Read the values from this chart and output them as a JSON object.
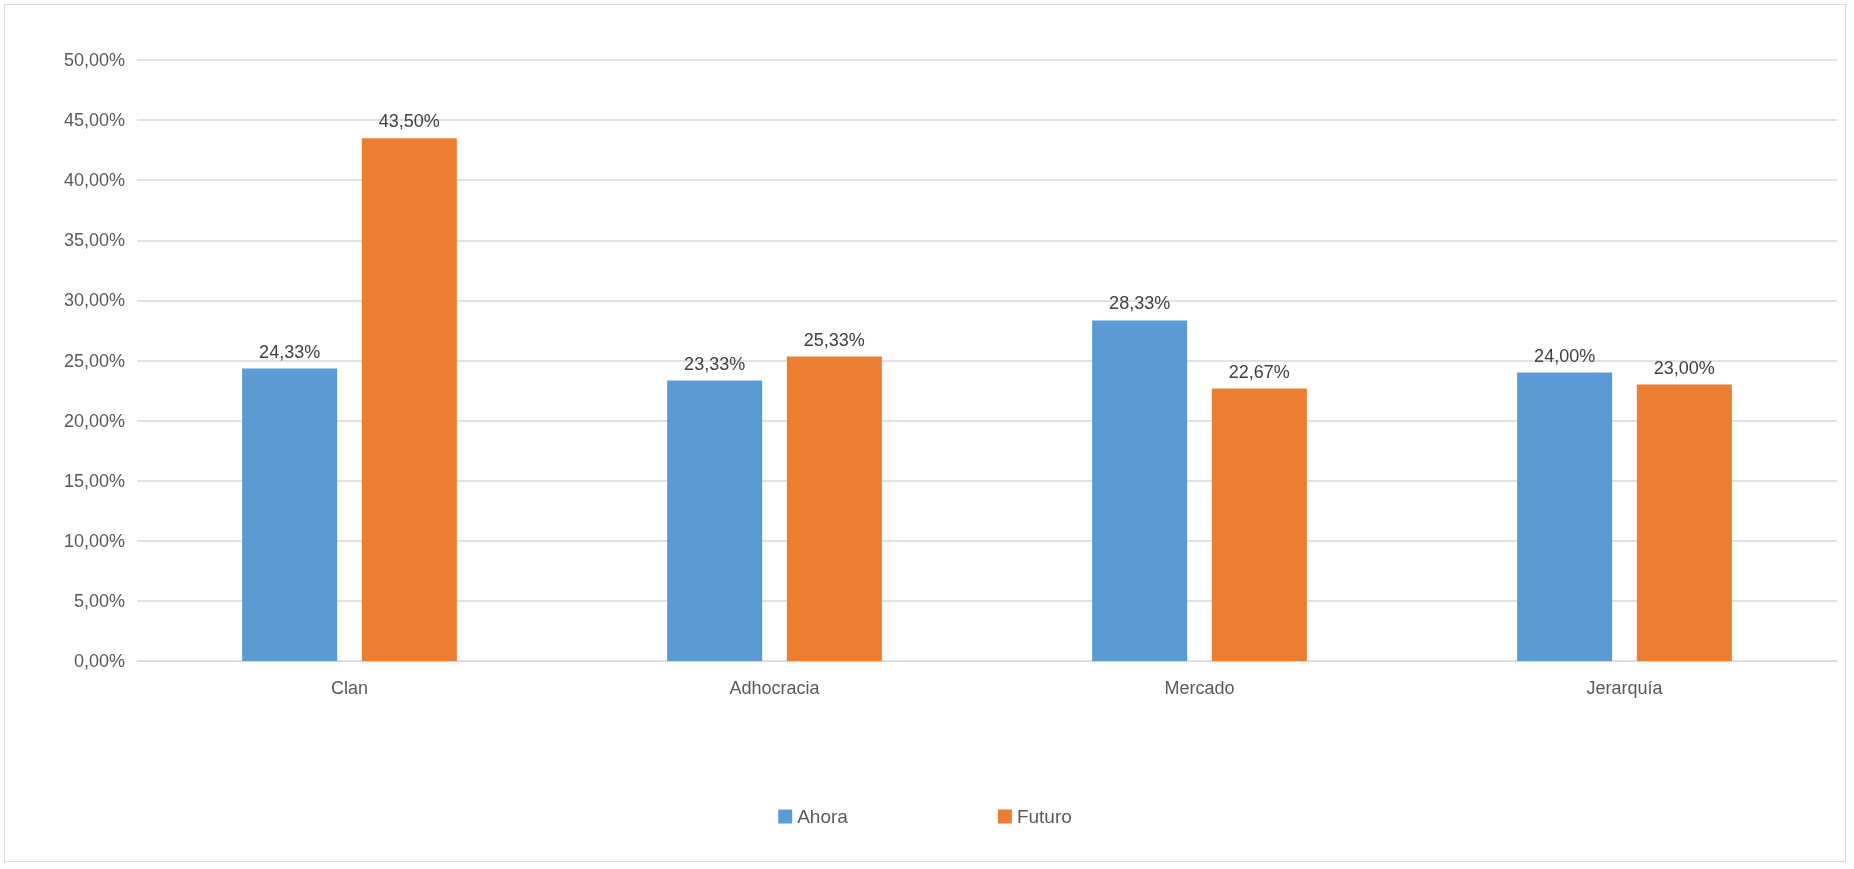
{
  "chart_data": {
    "type": "bar",
    "categories": [
      "Clan",
      "Adhocracia",
      "Mercado",
      "Jerarquía"
    ],
    "series": [
      {
        "name": "Ahora",
        "color": "#5b9bd5",
        "values": [
          24.33,
          23.33,
          28.33,
          24.0
        ],
        "value_labels": [
          "24,33%",
          "23,33%",
          "28,33%",
          "24,00%"
        ]
      },
      {
        "name": "Futuro",
        "color": "#ed7d31",
        "values": [
          43.5,
          25.33,
          22.67,
          23.0
        ],
        "value_labels": [
          "43,50%",
          "25,33%",
          "22,67%",
          "23,00%"
        ]
      }
    ],
    "ylim": [
      0,
      50
    ],
    "yticks": [
      {
        "value": 0,
        "label": "0,00%"
      },
      {
        "value": 5,
        "label": "5,00%"
      },
      {
        "value": 10,
        "label": "10,00%"
      },
      {
        "value": 15,
        "label": "15,00%"
      },
      {
        "value": 20,
        "label": "20,00%"
      },
      {
        "value": 25,
        "label": "25,00%"
      },
      {
        "value": 30,
        "label": "30,00%"
      },
      {
        "value": 35,
        "label": "35,00%"
      },
      {
        "value": 40,
        "label": "40,00%"
      },
      {
        "value": 45,
        "label": "45,00%"
      },
      {
        "value": 50,
        "label": "50,00%"
      }
    ],
    "grid": true,
    "legend": "bottom"
  }
}
